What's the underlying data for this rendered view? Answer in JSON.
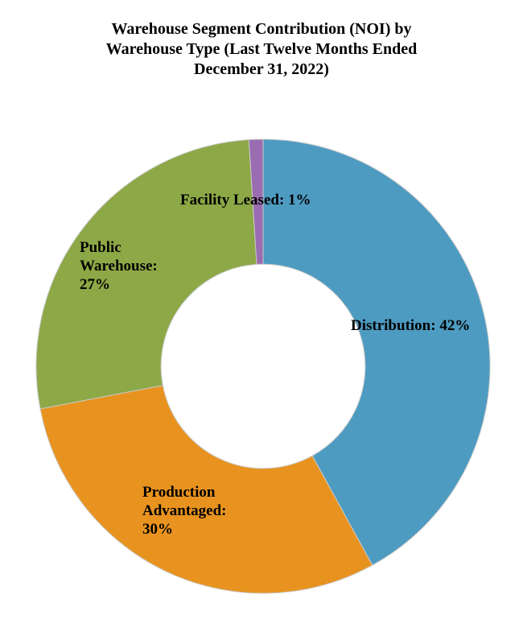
{
  "header": {
    "title_text": "Warehouse Segment Contribution (NOI) by\nWarehouse Type (Last Twelve Months Ended\nDecember 31, 2022)"
  },
  "chart_data": {
    "type": "pie",
    "subtype": "donut",
    "title": "Warehouse Segment Contribution (NOI) by Warehouse Type (Last Twelve Months Ended December 31, 2022)",
    "categories": [
      "Distribution",
      "Production Advantaged",
      "Public Warehouse",
      "Facility Leased"
    ],
    "values": [
      42,
      30,
      27,
      1
    ],
    "unit": "%",
    "colors": [
      "#4D9BC1",
      "#E8931F",
      "#8DA846",
      "#9A6CB0"
    ],
    "slice_edge_color": "#c9c9c9",
    "start_angle": 90,
    "direction": "clockwise",
    "inner_radius_ratio": 0.45,
    "background": "#ffffff",
    "legend": "none",
    "annotations": [
      {
        "slice": "Facility Leased",
        "text": "Facility Leased: 1%"
      },
      {
        "slice": "Public Warehouse",
        "text": "Public\nWarehouse:\n27%"
      },
      {
        "slice": "Distribution",
        "text": "Distribution: 42%"
      },
      {
        "slice": "Production Advantaged",
        "text": "Production\nAdvantaged:\n30%"
      }
    ]
  }
}
